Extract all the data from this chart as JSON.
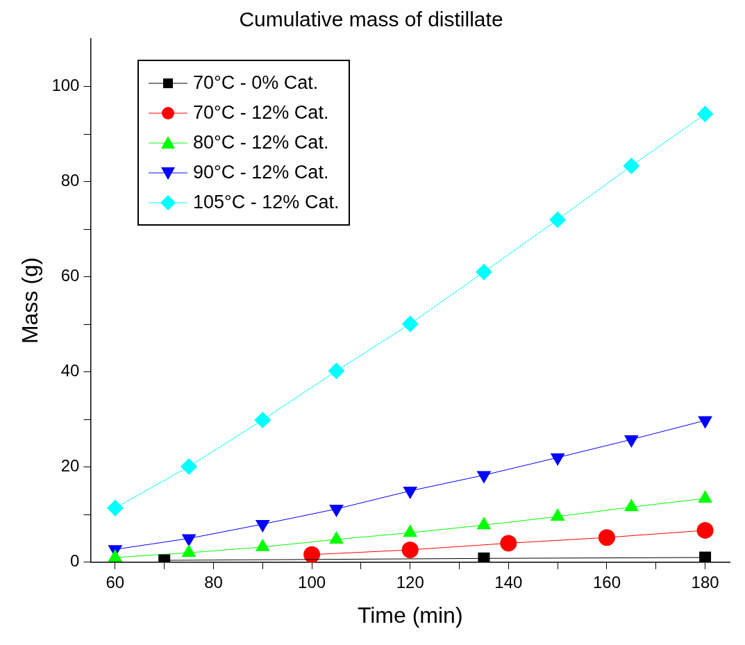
{
  "chart_data": {
    "type": "line",
    "title": "Cumulative mass of distillate",
    "xlabel": "Time (min)",
    "ylabel": "Mass (g)",
    "xlim": [
      55,
      185
    ],
    "xticks": [
      60,
      {
        "value": 70,
        "label": null
      },
      80,
      {
        "value": 90,
        "label": null
      },
      100,
      {
        "value": 110,
        "label": null
      },
      120,
      {
        "value": 130,
        "label": null
      },
      140,
      {
        "value": 150,
        "label": null
      },
      160,
      {
        "value": 170,
        "label": null
      },
      180
    ],
    "ylim": [
      0,
      110
    ],
    "yticks": [
      0,
      {
        "value": 10,
        "label": null
      },
      20,
      {
        "value": 30,
        "label": null
      },
      40,
      {
        "value": 50,
        "label": null
      },
      60,
      {
        "value": 70,
        "label": null
      },
      80,
      {
        "value": 90,
        "label": null
      },
      100
    ],
    "grid": false,
    "legend": "top left",
    "line_style": "solid",
    "series": [
      {
        "name": "70°C - 0% Cat.",
        "color": "#000000",
        "marker": "square",
        "x": [
          70,
          135,
          180
        ],
        "values": [
          0.4,
          0.8,
          1.0
        ]
      },
      {
        "name": "70°C - 12% Cat.",
        "color": "#ff0000",
        "marker": "circle",
        "x": [
          100,
          120,
          140,
          160,
          180
        ],
        "values": [
          1.6,
          2.6,
          4.0,
          5.2,
          6.7
        ]
      },
      {
        "name": "80°C - 12% Cat.",
        "color": "#00ff00",
        "marker": "triangle",
        "x": [
          60,
          75,
          90,
          105,
          120,
          135,
          150,
          165,
          180
        ],
        "values": [
          1.0,
          2.0,
          3.2,
          4.8,
          6.2,
          7.8,
          9.6,
          11.6,
          13.4
        ]
      },
      {
        "name": "90°C - 12% Cat.",
        "color": "#0000ff",
        "marker": "triangle-down",
        "x": [
          60,
          75,
          90,
          105,
          120,
          135,
          150,
          165,
          180
        ],
        "values": [
          2.7,
          5.0,
          8.0,
          11.2,
          15.0,
          18.3,
          22.0,
          25.8,
          29.8
        ]
      },
      {
        "name": "105°C - 12% Cat.",
        "color": "#00ffff",
        "marker": "diamond",
        "x": [
          60,
          75,
          90,
          105,
          120,
          135,
          150,
          165,
          180
        ],
        "values": [
          11.4,
          20.1,
          29.9,
          40.2,
          50.1,
          61.0,
          72.0,
          83.3,
          94.2
        ]
      }
    ]
  }
}
